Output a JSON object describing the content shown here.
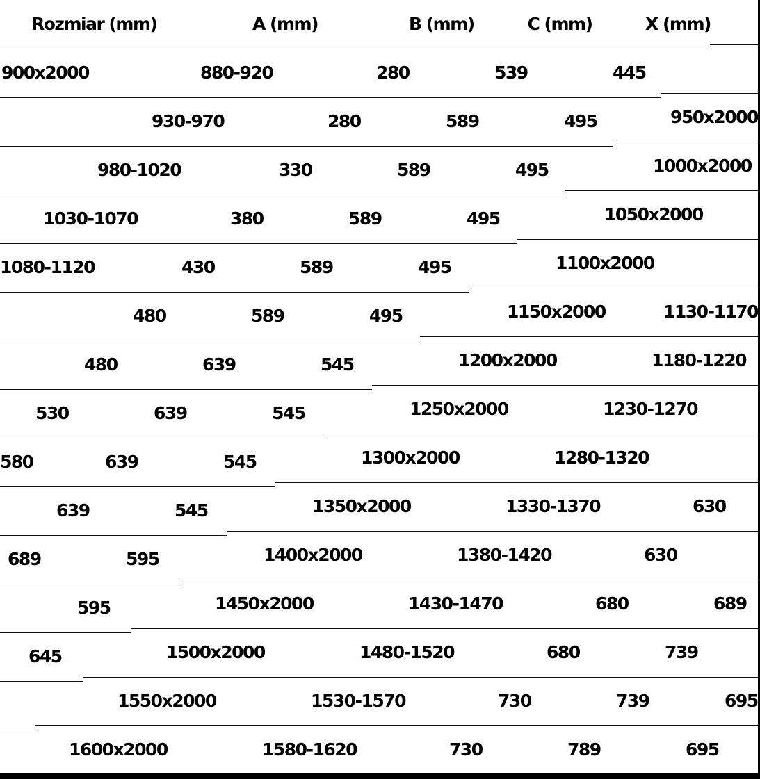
{
  "table": {
    "headers": [
      "Rozmiar (mm)",
      "A (mm)",
      "B (mm)",
      "C (mm)",
      "X (mm)"
    ],
    "rows": [
      [
        "900x2000",
        "880-920",
        "280",
        "539",
        "445"
      ],
      [
        "950x2000",
        "930-970",
        "280",
        "589",
        "495"
      ],
      [
        "1000x2000",
        "980-1020",
        "330",
        "589",
        "495"
      ],
      [
        "1050x2000",
        "1030-1070",
        "380",
        "589",
        "495"
      ],
      [
        "1100x2000",
        "1080-1120",
        "430",
        "589",
        "495"
      ],
      [
        "1150x2000",
        "1130-1170",
        "480",
        "589",
        "495"
      ],
      [
        "1200x2000",
        "1180-1220",
        "480",
        "639",
        "545"
      ],
      [
        "1250x2000",
        "1230-1270",
        "530",
        "639",
        "545"
      ],
      [
        "1300x2000",
        "1280-1320",
        "580",
        "639",
        "545"
      ],
      [
        "1350x2000",
        "1330-1370",
        "630",
        "639",
        "545"
      ],
      [
        "1400x2000",
        "1380-1420",
        "630",
        "689",
        "595"
      ],
      [
        "1450x2000",
        "1430-1470",
        "680",
        "689",
        "595"
      ],
      [
        "1500x2000",
        "1480-1520",
        "680",
        "739",
        "645"
      ],
      [
        "1550x2000",
        "1530-1570",
        "730",
        "739",
        "695"
      ],
      [
        "1600x2000",
        "1580-1620",
        "730",
        "789",
        "695"
      ]
    ]
  }
}
